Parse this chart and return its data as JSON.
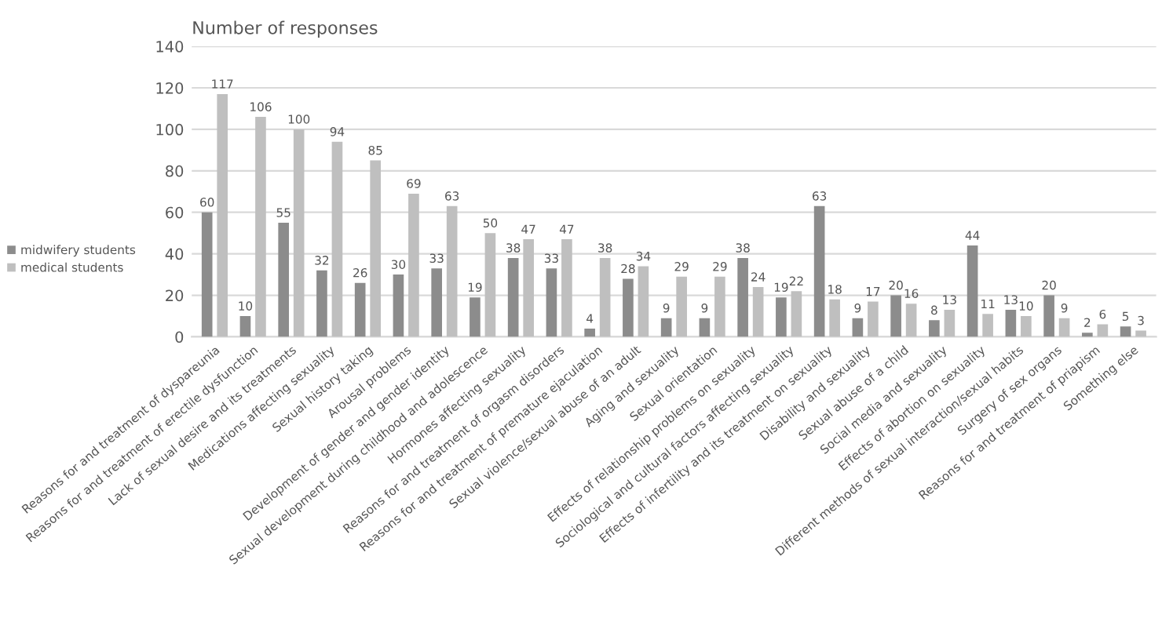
{
  "chart_data": {
    "type": "bar",
    "ylabel": "Number of responses",
    "categories": [
      "Reasons for and treatment of dyspareunia",
      "Reasons for and treatment of erectile dysfunction",
      "Lack of sexual desire and its treatments",
      "Medications affecting sexuality",
      "Sexual history taking",
      "Arousal problems",
      "Development of gender and gender identity",
      "Sexual development during childhood and adolescence",
      "Hormones affecting sexuality",
      "Reasons for and treatment of orgasm disorders",
      "Reasons for and treatment of premature ejaculation",
      "Sexual violence/sexual abuse of an adult",
      "Aging and sexuality",
      "Sexual orientation",
      "Effects of relationship problems on sexuality",
      "Sociological and cultural factors affecting sexuality",
      "Effects of infertility and its treatment on sexuality",
      "Disability and sexuality",
      "Sexual abuse of a child",
      "Social media and sexuality",
      "Effects of abortion on sexuality",
      "Different methods of sexual interaction/sexual habits",
      "Surgery of sex organs",
      "Reasons for and treatment of priapism",
      "Something else"
    ],
    "series": [
      {
        "name": "midwifery students",
        "color": "#8c8c8c",
        "values": [
          60,
          10,
          55,
          32,
          26,
          30,
          33,
          19,
          38,
          33,
          4,
          28,
          9,
          9,
          38,
          19,
          63,
          9,
          20,
          8,
          44,
          13,
          20,
          2,
          5
        ]
      },
      {
        "name": "medical students",
        "color": "#bfbfbf",
        "values": [
          117,
          106,
          100,
          94,
          85,
          69,
          63,
          50,
          47,
          47,
          38,
          34,
          29,
          29,
          24,
          22,
          18,
          17,
          16,
          13,
          11,
          10,
          9,
          6,
          3
        ]
      }
    ],
    "ylim": [
      0,
      140
    ],
    "yticks": [
      0,
      20,
      40,
      60,
      80,
      100,
      120,
      140
    ],
    "grid": "y",
    "legend": "left",
    "data_labels": true
  }
}
